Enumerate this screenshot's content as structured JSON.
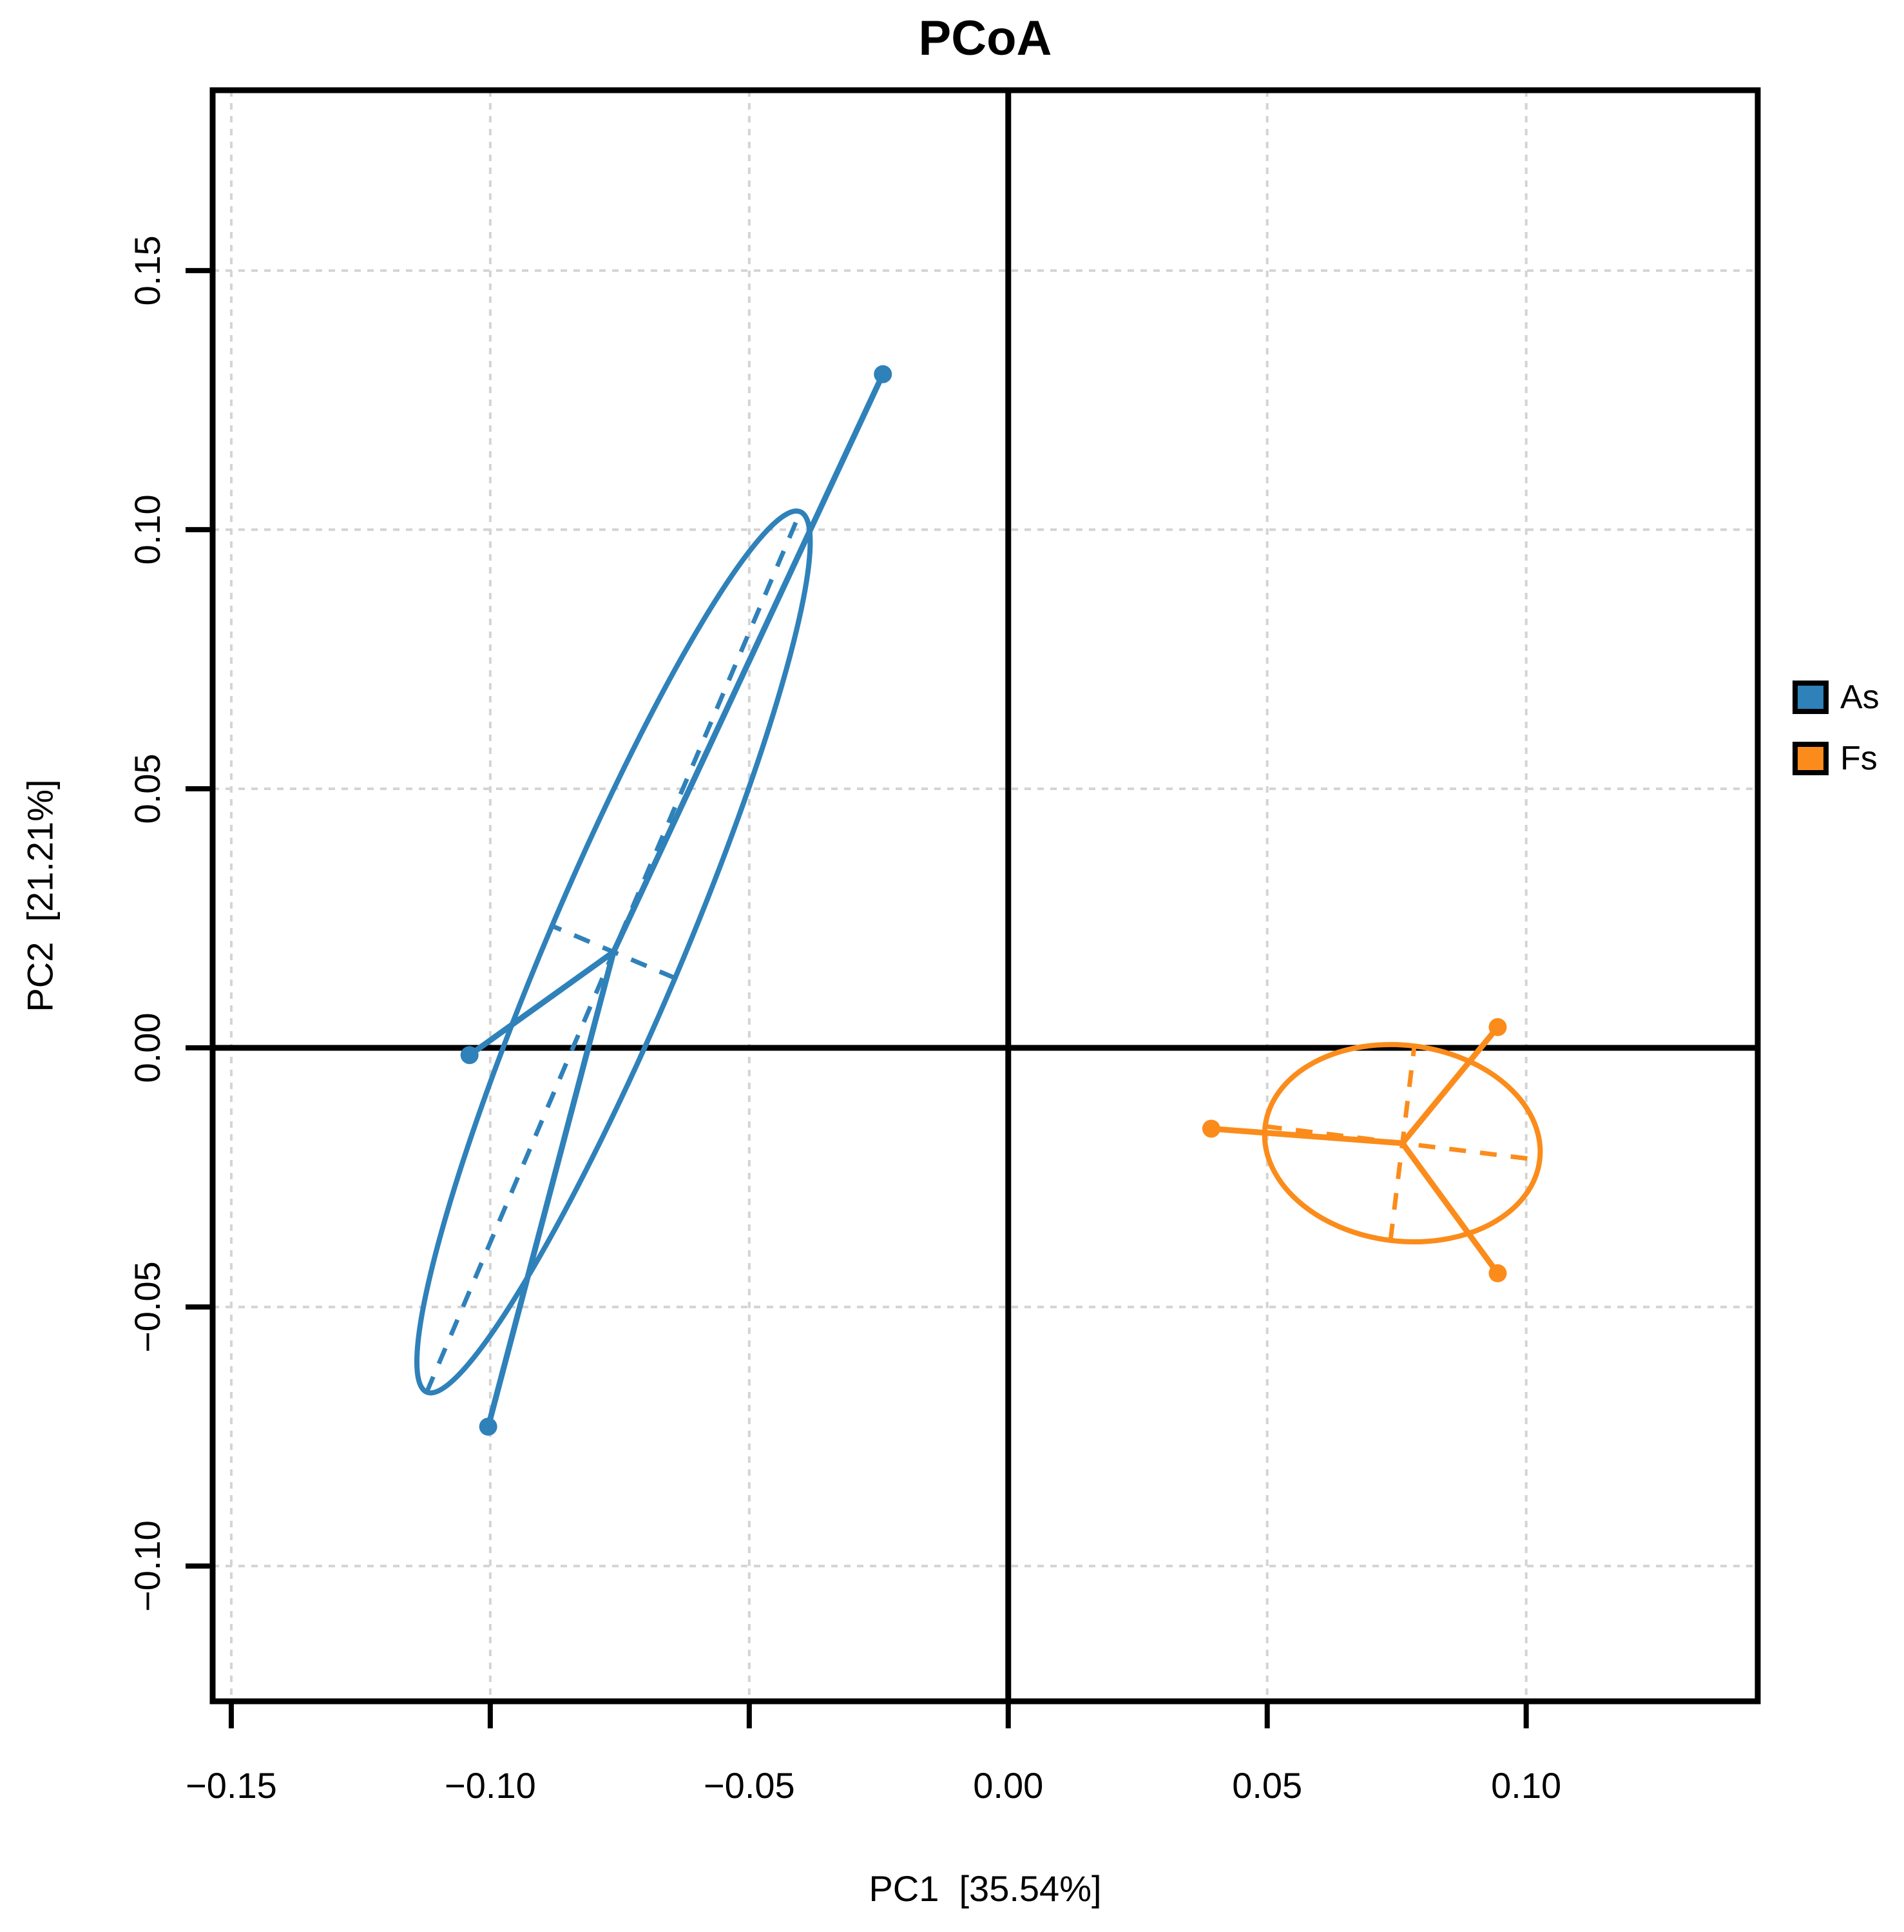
{
  "chart_data": {
    "type": "scatter",
    "title": "PCoA",
    "xlabel": "PC1  [35.54%]",
    "ylabel": "PC2  [21.21%]",
    "xlim": [
      -0.1536,
      0.1447
    ],
    "ylim": [
      -0.1261,
      0.1848
    ],
    "grid": true,
    "zero_lines": true,
    "x_ticks": {
      "values": [
        -0.15,
        -0.1,
        -0.05,
        0.0,
        0.05,
        0.1
      ],
      "labels": [
        "−0.15",
        "−0.10",
        "−0.05",
        "0.00",
        "0.05",
        "0.10"
      ]
    },
    "y_ticks": {
      "values": [
        -0.1,
        -0.05,
        0.0,
        0.05,
        0.1,
        0.15
      ],
      "labels": [
        "−0.10",
        "−0.05",
        "0.00",
        "0.05",
        "0.10",
        "0.15"
      ]
    },
    "legend": {
      "position": "right",
      "items": [
        {
          "label": "As",
          "color": "#2F81BA"
        },
        {
          "label": "Fs",
          "color": "#FB8C1B"
        }
      ]
    },
    "colors": {
      "as_blue": "#2F81BA",
      "fs_orange": "#FB8C1B",
      "gridline": "#D4D4D4",
      "axis": "#000000"
    },
    "series": [
      {
        "name": "As",
        "color": "#2F81BA",
        "points": [
          [
            -0.0242,
            0.13
          ],
          [
            -0.104,
            -0.0014
          ],
          [
            -0.1004,
            -0.0731
          ]
        ],
        "centroid": [
          -0.0762,
          0.0185
        ],
        "ellipse": {
          "center": [
            -0.0762,
            0.0185
          ],
          "semi_major": 0.0923,
          "semi_minor": 0.0129,
          "angle_deg": 67
        }
      },
      {
        "name": "Fs",
        "color": "#FB8C1B",
        "points": [
          [
            0.0392,
            -0.0156
          ],
          [
            0.0945,
            0.004
          ],
          [
            0.0945,
            -0.0435
          ]
        ],
        "centroid": [
          0.0761,
          -0.0184
        ],
        "ellipse": {
          "center": [
            0.0761,
            -0.0184
          ],
          "semi_major": 0.0267,
          "semi_minor": 0.0189,
          "angle_deg": -7
        }
      }
    ]
  }
}
